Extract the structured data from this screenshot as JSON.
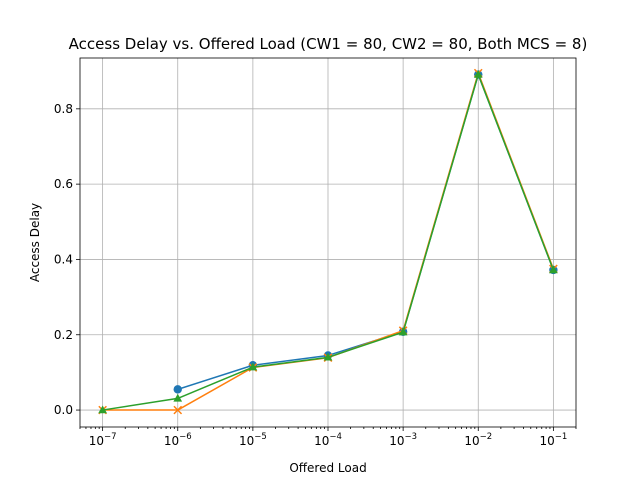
{
  "chart_data": {
    "type": "line",
    "title": "Access Delay vs. Offered Load (CW1 = 80, CW2 = 80, Both MCS = 8)",
    "xlabel": "Offered Load",
    "ylabel": "Access Delay",
    "xscale": "log",
    "xlim": [
      5e-08,
      0.2
    ],
    "ylim": [
      -0.045,
      0.935
    ],
    "grid": true,
    "x": [
      1e-07,
      1e-06,
      1e-05,
      0.0001,
      0.001,
      0.01,
      0.1
    ],
    "x_tick_labels": [
      {
        "base": "10",
        "exp": "−7"
      },
      {
        "base": "10",
        "exp": "−6"
      },
      {
        "base": "10",
        "exp": "−5"
      },
      {
        "base": "10",
        "exp": "−4"
      },
      {
        "base": "10",
        "exp": "−3"
      },
      {
        "base": "10",
        "exp": "−2"
      },
      {
        "base": "10",
        "exp": "−1"
      }
    ],
    "y_ticks": [
      0.0,
      0.2,
      0.4,
      0.6,
      0.8
    ],
    "y_tick_labels": [
      "0.0",
      "0.2",
      "0.4",
      "0.6",
      "0.8"
    ],
    "series": [
      {
        "color": "#1f77b4",
        "marker": "circle",
        "values": [
          null,
          0.055,
          0.119,
          0.145,
          0.208,
          0.891,
          0.372
        ]
      },
      {
        "color": "#ff7f0e",
        "marker": "x",
        "values": [
          0.0,
          0.0,
          0.113,
          0.139,
          0.211,
          0.895,
          0.375
        ]
      },
      {
        "color": "#2ca02c",
        "marker": "triangle",
        "values": [
          0.0,
          0.031,
          0.114,
          0.14,
          0.207,
          0.891,
          0.372
        ]
      }
    ]
  }
}
